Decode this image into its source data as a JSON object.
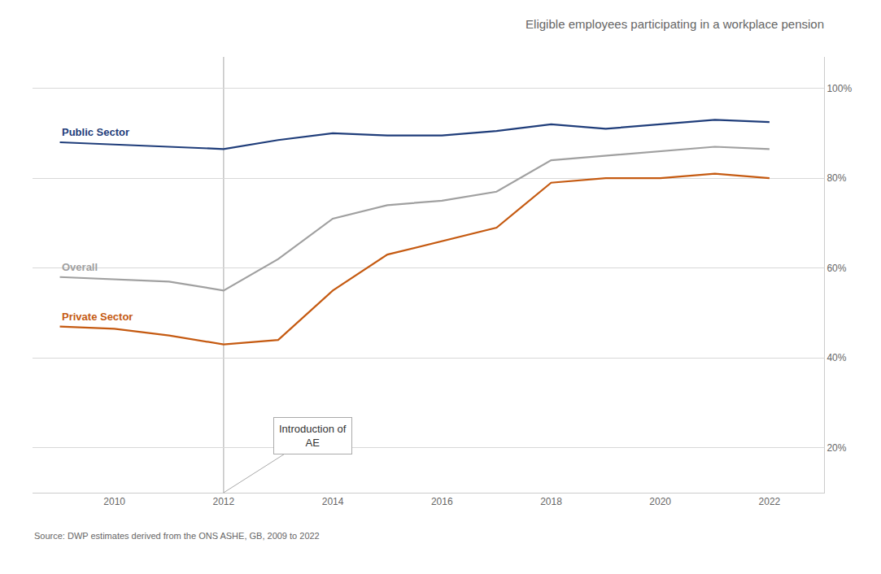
{
  "chart_data": {
    "type": "line",
    "title": "Eligible employees participating in a workplace pension",
    "x": [
      2009,
      2010,
      2011,
      2012,
      2013,
      2014,
      2015,
      2016,
      2017,
      2018,
      2019,
      2020,
      2021,
      2022
    ],
    "series": [
      {
        "name": "Public Sector",
        "color": "#1f3d7a",
        "values": [
          88,
          87.5,
          87,
          86.5,
          88.5,
          90,
          89.5,
          89.5,
          90.5,
          92,
          91,
          92,
          93,
          92.5
        ]
      },
      {
        "name": "Overall",
        "color": "#a0a0a0",
        "values": [
          58,
          57.5,
          57,
          55,
          62,
          71,
          74,
          75,
          77,
          84,
          85,
          86,
          87,
          86.5
        ]
      },
      {
        "name": "Private Sector",
        "color": "#c55a11",
        "values": [
          47,
          46.5,
          45,
          43,
          44,
          55,
          63,
          66,
          69,
          79,
          80,
          80,
          81,
          80
        ]
      }
    ],
    "xlim": [
      2008.5,
      2023.0
    ],
    "ylim": [
      10,
      107
    ],
    "xticks": [
      2010,
      2012,
      2014,
      2016,
      2018,
      2020,
      2022
    ],
    "yticks": [
      {
        "value": 20,
        "label": "20%"
      },
      {
        "value": 40,
        "label": "40%"
      },
      {
        "value": 60,
        "label": "60%"
      },
      {
        "value": 80,
        "label": "80%"
      },
      {
        "value": 100,
        "label": "100%"
      }
    ],
    "grid": true,
    "annotations": [
      {
        "text": "Introduction of\nAE",
        "x": 2012,
        "color": "#bbbbbb"
      },
      {
        "text": "Source: DWP estimates derived from the ONS ASHE, GB, 2009 to 2022"
      }
    ]
  }
}
